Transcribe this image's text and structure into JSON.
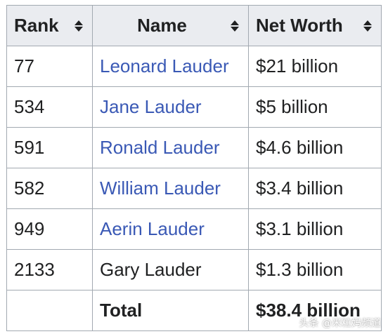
{
  "table": {
    "headers": [
      "Rank",
      "Name",
      "Net Worth"
    ],
    "rows": [
      {
        "rank": "77",
        "name": "Leonard Lauder",
        "net_worth": "$21 billion"
      },
      {
        "rank": "534",
        "name": "Jane Lauder",
        "net_worth": "$5 billion"
      },
      {
        "rank": "591",
        "name": "Ronald Lauder",
        "net_worth": "$4.6 billion"
      },
      {
        "rank": "582",
        "name": "William Lauder",
        "net_worth": "$3.4 billion"
      },
      {
        "rank": "949",
        "name": "Aerin Lauder",
        "net_worth": "$3.1 billion"
      },
      {
        "rank": "2133",
        "name": "Gary Lauder",
        "net_worth": "$1.3 billion"
      }
    ],
    "total": {
      "rank": "",
      "label": "Total",
      "net_worth": "$38.4 billion"
    }
  },
  "watermark": "头条 @米粒妈频道",
  "colors": {
    "header_bg": "#eaecf0",
    "border": "#a2a9b1",
    "link": "#3a59b5",
    "text": "#202122"
  },
  "icons": {
    "sort": "sort-up-down-icon"
  }
}
